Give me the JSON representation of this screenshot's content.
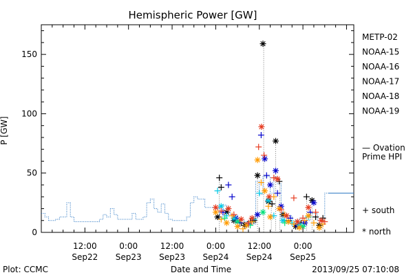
{
  "chart_data": {
    "type": "scatter",
    "title": "Hemispheric Power [GW]",
    "xlabel": "Date and Time",
    "ylabel": "P [GW]",
    "ylim": [
      0,
      175
    ],
    "xlim_hours": [
      0,
      86.0
    ],
    "yticks": [
      0,
      50,
      100,
      150
    ],
    "xticks": [
      {
        "hour": 12,
        "line1": "12:00",
        "line2": "Sep22"
      },
      {
        "hour": 24,
        "line1": "0:00",
        "line2": "Sep23"
      },
      {
        "hour": 36,
        "line1": "12:00",
        "line2": "Sep23"
      },
      {
        "hour": 48,
        "line1": "0:00",
        "line2": "Sep24"
      },
      {
        "hour": 60,
        "line1": "12:00",
        "line2": "Sep24"
      },
      {
        "hour": 72,
        "line1": "0:00",
        "line2": "Sep25"
      }
    ],
    "grid": false,
    "legend_placement": "right",
    "symbol_legend": {
      "south": "+ south",
      "north": "* north"
    },
    "plot_label": "Plot: CCMC",
    "timestamp": "2013/09/25 07:10:08",
    "series": [
      {
        "name": "METP-02",
        "color": "#000000",
        "points": [
          [
            49,
            46,
            "s"
          ],
          [
            49.5,
            38,
            "s"
          ],
          [
            51,
            17,
            "n"
          ],
          [
            55,
            8,
            "s"
          ],
          [
            56,
            6,
            "n"
          ],
          [
            57.5,
            9,
            "s"
          ],
          [
            58.5,
            10,
            "n"
          ],
          [
            59.5,
            48,
            "n"
          ],
          [
            61,
            159,
            "n"
          ],
          [
            62.5,
            26,
            "n"
          ],
          [
            63.5,
            24,
            "s"
          ],
          [
            64.5,
            77,
            "n"
          ],
          [
            65.5,
            43,
            "s"
          ],
          [
            66.5,
            15,
            "n"
          ],
          [
            68,
            10,
            "s"
          ],
          [
            70,
            5,
            "n"
          ],
          [
            71.5,
            8,
            "s"
          ],
          [
            73,
            30,
            "s"
          ],
          [
            74.5,
            27,
            "n"
          ],
          [
            75.5,
            13,
            "s"
          ],
          [
            76.5,
            6,
            "n"
          ],
          [
            77.5,
            12,
            "s"
          ],
          [
            48.5,
            13,
            "n"
          ],
          [
            53,
            10,
            "n"
          ]
        ]
      },
      {
        "name": "NOAA-15",
        "color": "#0000cc",
        "points": [
          [
            50,
            17,
            "s"
          ],
          [
            51.5,
            40,
            "s"
          ],
          [
            52.5,
            30,
            "s"
          ],
          [
            53.5,
            12,
            "n"
          ],
          [
            54.5,
            8,
            "s"
          ],
          [
            57,
            7,
            "s"
          ],
          [
            59.5,
            15,
            "n"
          ],
          [
            60.5,
            82,
            "s"
          ],
          [
            61.5,
            62,
            "n"
          ],
          [
            62,
            48,
            "s"
          ],
          [
            63,
            40,
            "n"
          ],
          [
            64.5,
            52,
            "n"
          ],
          [
            65,
            33,
            "s"
          ],
          [
            66,
            22,
            "n"
          ],
          [
            68.5,
            12,
            "s"
          ],
          [
            70.5,
            6,
            "n"
          ],
          [
            72.5,
            8,
            "n"
          ],
          [
            74,
            17,
            "s"
          ],
          [
            75,
            25,
            "n"
          ]
        ]
      },
      {
        "name": "NOAA-16",
        "color": "#00c8e6",
        "points": [
          [
            48.5,
            35,
            "s"
          ],
          [
            49.5,
            22,
            "n"
          ],
          [
            51,
            14,
            "s"
          ],
          [
            53,
            12,
            "n"
          ],
          [
            58.5,
            11,
            "s"
          ],
          [
            60,
            33,
            "s"
          ],
          [
            62.5,
            27,
            "n"
          ],
          [
            64,
            14,
            "s"
          ],
          [
            66.5,
            10,
            "n"
          ],
          [
            69,
            8,
            "s"
          ],
          [
            71,
            6,
            "n"
          ],
          [
            73.5,
            13,
            "s"
          ]
        ]
      },
      {
        "name": "NOAA-17",
        "color": "#00e07a",
        "points": [
          [
            50.5,
            12,
            "s"
          ],
          [
            54,
            9,
            "n"
          ],
          [
            57.5,
            6,
            "s"
          ],
          [
            61,
            17,
            "n"
          ],
          [
            67,
            8,
            "s"
          ],
          [
            72,
            5,
            "n"
          ]
        ]
      },
      {
        "name": "NOAA-18",
        "color": "#ff9a00",
        "points": [
          [
            48,
            17,
            "n"
          ],
          [
            49.5,
            11,
            "s"
          ],
          [
            51,
            8,
            "n"
          ],
          [
            52.5,
            14,
            "s"
          ],
          [
            54,
            5,
            "n"
          ],
          [
            55.5,
            3,
            "s"
          ],
          [
            56.5,
            6,
            "n"
          ],
          [
            58,
            9,
            "s"
          ],
          [
            59.5,
            61,
            "n"
          ],
          [
            60.5,
            42,
            "s"
          ],
          [
            61.5,
            35,
            "n"
          ],
          [
            62.5,
            22,
            "s"
          ],
          [
            63,
            13,
            "n"
          ],
          [
            64,
            30,
            "s"
          ],
          [
            65.5,
            20,
            "n"
          ],
          [
            67,
            15,
            "s"
          ],
          [
            68,
            9,
            "n"
          ],
          [
            69.5,
            7,
            "s"
          ],
          [
            71,
            4,
            "n"
          ],
          [
            72.5,
            10,
            "s"
          ],
          [
            73.5,
            14,
            "n"
          ],
          [
            75,
            8,
            "s"
          ],
          [
            76.5,
            4,
            "n"
          ],
          [
            77.5,
            7,
            "s"
          ]
        ]
      },
      {
        "name": "NOAA-19",
        "color": "#e63a1e",
        "points": [
          [
            48,
            21,
            "n"
          ],
          [
            49.5,
            18,
            "s"
          ],
          [
            51.5,
            20,
            "n"
          ],
          [
            53,
            15,
            "s"
          ],
          [
            55,
            11,
            "n"
          ],
          [
            57,
            8,
            "s"
          ],
          [
            58,
            12,
            "n"
          ],
          [
            59.8,
            72,
            "s"
          ],
          [
            60.6,
            89,
            "n"
          ],
          [
            61.3,
            65,
            "s"
          ],
          [
            62.7,
            30,
            "n"
          ],
          [
            64,
            46,
            "s"
          ],
          [
            65,
            45,
            "n"
          ],
          [
            66,
            19,
            "s"
          ],
          [
            67.5,
            14,
            "n"
          ],
          [
            69.5,
            29,
            "s"
          ],
          [
            70.5,
            9,
            "n"
          ],
          [
            72,
            12,
            "s"
          ],
          [
            73.5,
            21,
            "n"
          ],
          [
            75.5,
            17,
            "s"
          ],
          [
            77,
            10,
            "n"
          ],
          [
            78,
            9,
            "s"
          ]
        ]
      }
    ],
    "ovation": {
      "name_line1": "— Ovation",
      "name_line2": "Prime HPI",
      "color": "#1f6fbf",
      "steps": [
        [
          0,
          16
        ],
        [
          1,
          13
        ],
        [
          2,
          10
        ],
        [
          4,
          11
        ],
        [
          5,
          13
        ],
        [
          7,
          25
        ],
        [
          8,
          13
        ],
        [
          9,
          9
        ],
        [
          12,
          9
        ],
        [
          15,
          9
        ],
        [
          16,
          11
        ],
        [
          17,
          15
        ],
        [
          18,
          13
        ],
        [
          19,
          20
        ],
        [
          20,
          15
        ],
        [
          21,
          11
        ],
        [
          24,
          11
        ],
        [
          25,
          16
        ],
        [
          26,
          11
        ],
        [
          28,
          13
        ],
        [
          29,
          25
        ],
        [
          30,
          28
        ],
        [
          31,
          20
        ],
        [
          32,
          17
        ],
        [
          33,
          24
        ],
        [
          34,
          16
        ],
        [
          35,
          11
        ],
        [
          36,
          10
        ],
        [
          39,
          10
        ],
        [
          40,
          13
        ],
        [
          41,
          25
        ],
        [
          42,
          30
        ],
        [
          43,
          28
        ],
        [
          45,
          21
        ],
        [
          48,
          20
        ],
        [
          49,
          13
        ],
        [
          50,
          23
        ],
        [
          51,
          21
        ],
        [
          52,
          15
        ],
        [
          54,
          10
        ],
        [
          56,
          9
        ],
        [
          57,
          6
        ],
        [
          58,
          7
        ],
        [
          59,
          43
        ],
        [
          60,
          32
        ],
        [
          61,
          47
        ],
        [
          62,
          47
        ],
        [
          63,
          33
        ],
        [
          64,
          47
        ],
        [
          65,
          41
        ],
        [
          66,
          11
        ],
        [
          67,
          14
        ],
        [
          69,
          10
        ],
        [
          71,
          12
        ],
        [
          73,
          10
        ],
        [
          74,
          16
        ],
        [
          76,
          10
        ],
        [
          78,
          33
        ],
        [
          79,
          33
        ]
      ]
    },
    "markers": [
      {
        "hour": 49,
        "y": 46
      },
      {
        "hour": 54,
        "y": 8
      },
      {
        "hour": 57,
        "y": 6
      },
      {
        "hour": 59.5,
        "y": 47
      },
      {
        "hour": 61.2,
        "y": 159
      },
      {
        "hour": 63.3,
        "y": 24
      },
      {
        "hour": 64.5,
        "y": 77
      },
      {
        "hour": 65.6,
        "y": 43
      },
      {
        "hour": 73,
        "y": 30
      },
      {
        "hour": 74.5,
        "y": 27
      },
      {
        "hour": 77.5,
        "y": 12
      }
    ]
  }
}
